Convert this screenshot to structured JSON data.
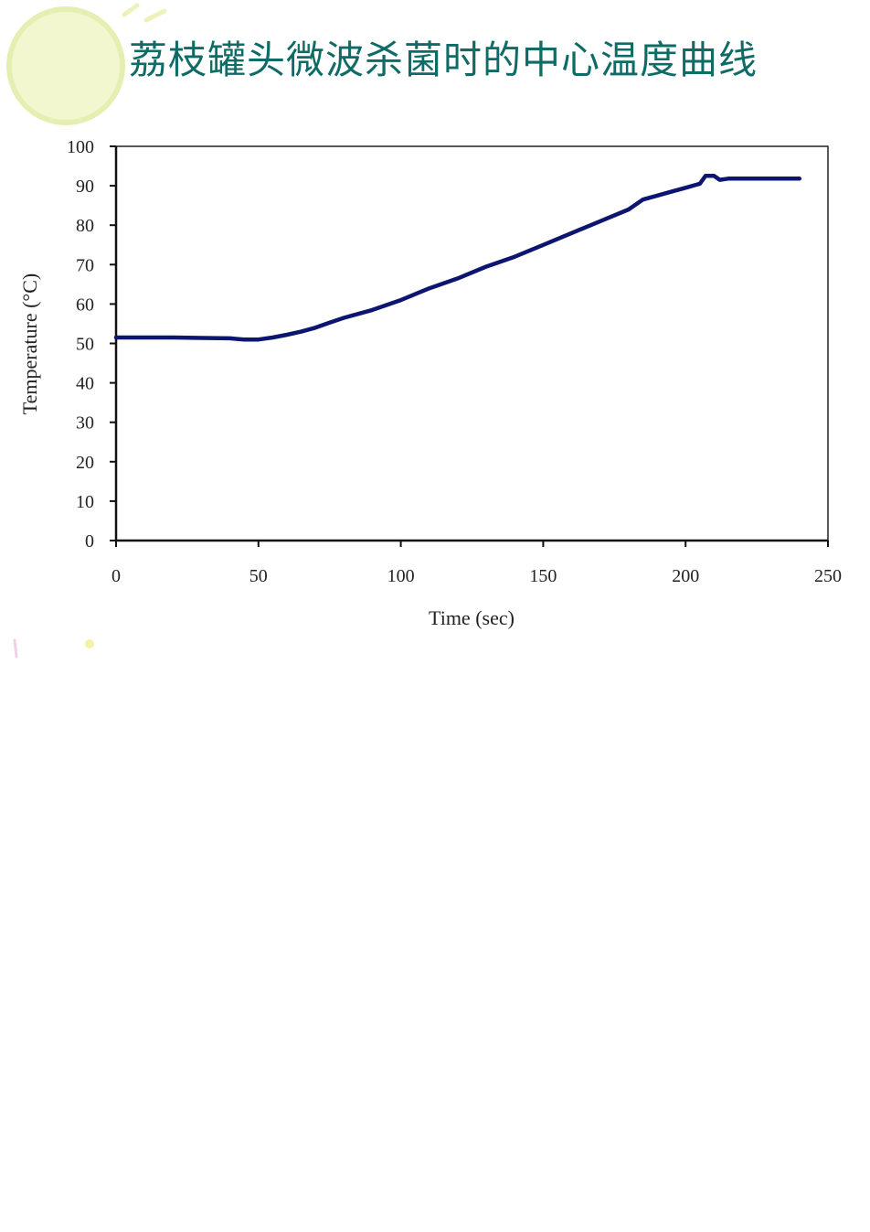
{
  "slide": {
    "title": "荔枝罐头微波杀菌时的中心温度曲线",
    "title_color": "#0f6b66",
    "decoration": "light-green-circle"
  },
  "chart_data": {
    "type": "line",
    "title": "",
    "xlabel": "Time (sec)",
    "ylabel": "Temperature (°C)",
    "xlim": [
      0,
      250
    ],
    "ylim": [
      0,
      100
    ],
    "x_ticks": [
      0,
      50,
      100,
      150,
      200,
      250
    ],
    "y_ticks": [
      0,
      10,
      20,
      30,
      40,
      50,
      60,
      70,
      80,
      90,
      100
    ],
    "grid": false,
    "line_color": "#0c1570",
    "series": [
      {
        "x": [
          0,
          10,
          20,
          30,
          40,
          45,
          50,
          55,
          60,
          65,
          70,
          75,
          80,
          90,
          100,
          110,
          120,
          130,
          140,
          150,
          160,
          170,
          180,
          185,
          190,
          195,
          200,
          205,
          207,
          210,
          212,
          215,
          220,
          230,
          240
        ],
        "values": [
          51.5,
          51.5,
          51.5,
          51.4,
          51.3,
          51.0,
          51.0,
          51.5,
          52.2,
          53.0,
          54.0,
          55.3,
          56.5,
          58.5,
          61.0,
          64.0,
          66.5,
          69.5,
          72.0,
          75.0,
          78.0,
          81.0,
          84.0,
          86.5,
          87.5,
          88.5,
          89.5,
          90.5,
          92.5,
          92.5,
          91.5,
          91.8,
          91.8,
          91.8,
          91.8
        ]
      }
    ]
  }
}
